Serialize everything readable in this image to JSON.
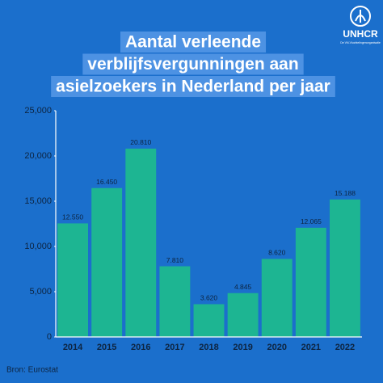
{
  "chart_data": {
    "type": "bar",
    "title": [
      "Aantal verleende",
      "verblijfsvergunningen aan",
      "asielzoekers in Nederland per jaar"
    ],
    "categories": [
      "2014",
      "2015",
      "2016",
      "2017",
      "2018",
      "2019",
      "2020",
      "2021",
      "2022"
    ],
    "values": [
      12550,
      16450,
      20810,
      7810,
      3620,
      4845,
      8620,
      12065,
      15188
    ],
    "value_labels": [
      "12.550",
      "16.450",
      "20.810",
      "7.810",
      "3.620",
      "4.845",
      "8.620",
      "12.065",
      "15.188"
    ],
    "color": "#1db592",
    "ylim": [
      0,
      25000
    ],
    "yticks": [
      0,
      {
        "value": 5000,
        "label": "5,000"
      },
      {
        "value": 10000,
        "label": "10,000"
      },
      {
        "value": 15000,
        "label": "15,000"
      },
      {
        "value": 20000,
        "label": "20,000"
      },
      {
        "value": 25000,
        "label": "25,000"
      }
    ],
    "grid": false,
    "source": "Bron: Eurostat"
  },
  "logo": {
    "name": "UNHCR",
    "tagline": "De VN-Vluchtelingenorganisatie"
  }
}
